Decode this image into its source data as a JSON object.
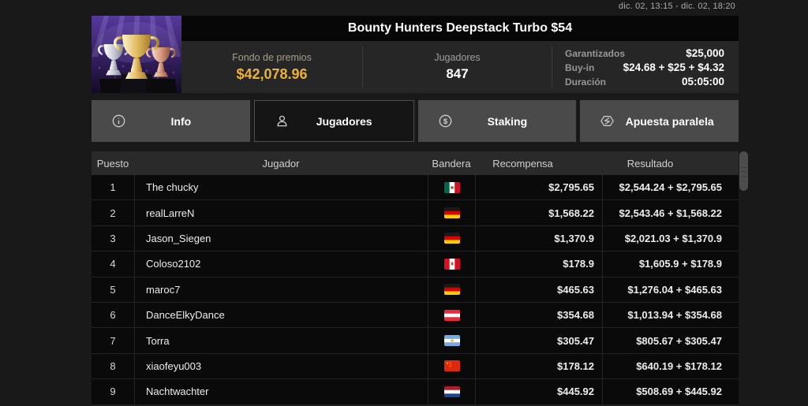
{
  "topbar": {
    "date_range": "dic. 02, 13:15 - dic. 02, 18:20"
  },
  "header": {
    "title": "Bounty Hunters Deepstack Turbo $54",
    "prize_pool": {
      "label": "Fondo de premios",
      "value": "$42,078.96"
    },
    "players": {
      "label": "Jugadores",
      "value": "847"
    },
    "details": [
      {
        "label": "Garantizados",
        "value": "$25,000"
      },
      {
        "label": "Buy-in",
        "value": "$24.68 + $25 + $4.32"
      },
      {
        "label": "Duración",
        "value": "05:05:00"
      }
    ]
  },
  "tabs": [
    {
      "label": "Info",
      "icon": "info-icon",
      "selected": false
    },
    {
      "label": "Jugadores",
      "icon": "person-icon",
      "selected": true
    },
    {
      "label": "Staking",
      "icon": "dollar-circle-icon",
      "selected": false
    },
    {
      "label": "Apuesta paralela",
      "icon": "parallel-bet-icon",
      "selected": false
    }
  ],
  "table": {
    "columns": [
      "Puesto",
      "Jugador",
      "Bandera",
      "Recompensa",
      "Resultado"
    ],
    "rows": [
      {
        "puesto": "1",
        "jugador": "The chucky",
        "bandera": "flag-mexico",
        "recompensa": "$2,795.65",
        "resultado": "$2,544.24 + $2,795.65"
      },
      {
        "puesto": "2",
        "jugador": "realLarreN",
        "bandera": "flag-germany",
        "recompensa": "$1,568.22",
        "resultado": "$2,543.46 + $1,568.22"
      },
      {
        "puesto": "3",
        "jugador": "Jason_Siegen",
        "bandera": "flag-germany",
        "recompensa": "$1,370.9",
        "resultado": "$2,021.03 + $1,370.9"
      },
      {
        "puesto": "4",
        "jugador": "Coloso2102",
        "bandera": "flag-peru",
        "recompensa": "$178.9",
        "resultado": "$1,605.9 + $178.9"
      },
      {
        "puesto": "5",
        "jugador": "maroc7",
        "bandera": "flag-germany",
        "recompensa": "$465.63",
        "resultado": "$1,276.04 + $465.63"
      },
      {
        "puesto": "6",
        "jugador": "DanceElkyDance",
        "bandera": "flag-austria",
        "recompensa": "$354.68",
        "resultado": "$1,013.94 + $354.68"
      },
      {
        "puesto": "7",
        "jugador": "Torra",
        "bandera": "flag-argentina",
        "recompensa": "$305.47",
        "resultado": "$805.67 + $305.47"
      },
      {
        "puesto": "8",
        "jugador": "xiaofeyu003",
        "bandera": "flag-china",
        "recompensa": "$178.12",
        "resultado": "$640.19 + $178.12"
      },
      {
        "puesto": "9",
        "jugador": "Nachtwachter",
        "bandera": "flag-netherlands",
        "recompensa": "$445.92",
        "resultado": "$508.69 + $445.92"
      }
    ]
  },
  "colors": {
    "accent_gold": "#e9b23c",
    "tab_bg": "#4a4a4a",
    "selected_tab_bg": "#151515",
    "page_bg": "#191919"
  }
}
